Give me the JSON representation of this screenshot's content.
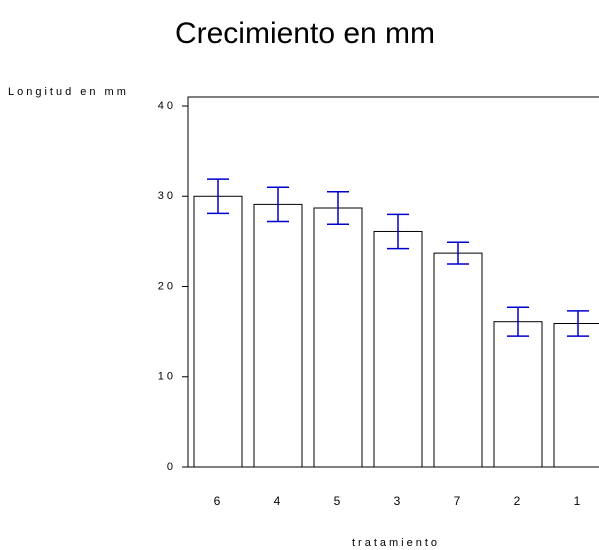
{
  "chart_data": {
    "type": "bar",
    "title": "Crecimiento en mm",
    "y_label": "Longitud en mm",
    "x_label": "tratamiento",
    "categories": [
      "6",
      "4",
      "5",
      "3",
      "7",
      "2",
      "1"
    ],
    "values": [
      30.0,
      29.1,
      28.7,
      26.1,
      23.7,
      16.1,
      15.9
    ],
    "errors": [
      1.9,
      1.9,
      1.8,
      1.9,
      1.2,
      1.6,
      1.4
    ],
    "color": "#ffffff",
    "error_color": "#0000cc",
    "ylim": [
      0,
      41
    ],
    "yticks": [
      0,
      10,
      20,
      30,
      40
    ],
    "grid": false
  }
}
